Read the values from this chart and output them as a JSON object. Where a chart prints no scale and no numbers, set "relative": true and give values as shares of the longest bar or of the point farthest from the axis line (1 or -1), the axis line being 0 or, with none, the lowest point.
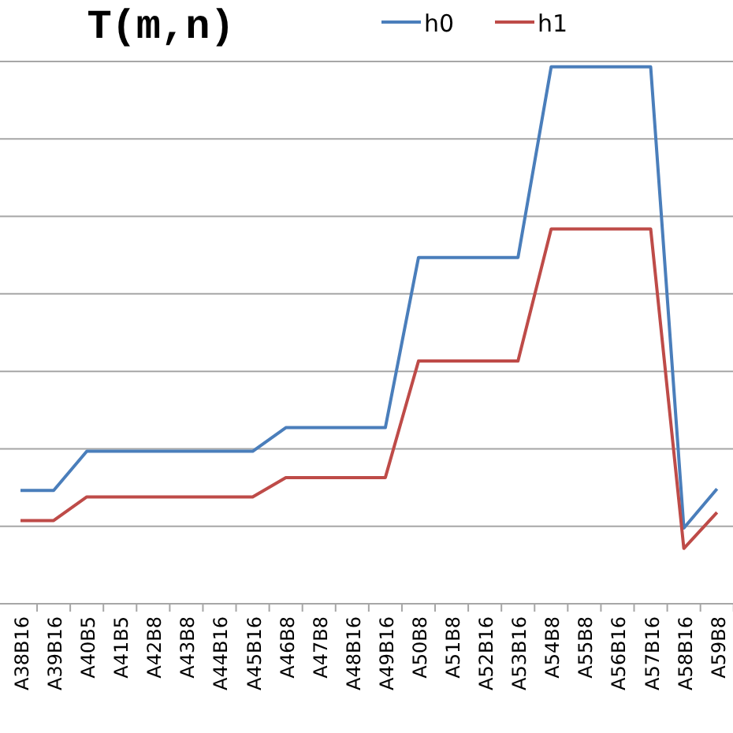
{
  "chart_data": {
    "type": "line",
    "title": "T(m,n)",
    "relative": true,
    "grid": "y",
    "legend": "top",
    "marker": "none",
    "line_style": "solid",
    "categories": [
      "A38B16",
      "A39B16",
      "A40B5",
      "A41B5",
      "A42B8",
      "A43B8",
      "A44B16",
      "A45B16",
      "A46B8",
      "A47B8",
      "A48B16",
      "A49B16",
      "A50B8",
      "A51B8",
      "A52B16",
      "A53B16",
      "A54B8",
      "A55B8",
      "A56B16",
      "A57B16",
      "A58B16",
      "A59B8"
    ],
    "series": [
      {
        "name": "h0",
        "color": "#4a7ebb",
        "values": [
          0.211,
          0.211,
          0.284,
          0.284,
          0.284,
          0.284,
          0.284,
          0.284,
          0.328,
          0.328,
          0.328,
          0.328,
          0.645,
          0.645,
          0.645,
          0.645,
          1,
          1,
          1,
          1,
          0.141,
          0.214
        ]
      },
      {
        "name": "h1",
        "color": "#be4b48",
        "values": [
          0.155,
          0.155,
          0.199,
          0.199,
          0.199,
          0.199,
          0.199,
          0.199,
          0.235,
          0.235,
          0.235,
          0.235,
          0.452,
          0.452,
          0.452,
          0.452,
          0.698,
          0.698,
          0.698,
          0.698,
          0.103,
          0.17
        ]
      }
    ]
  }
}
